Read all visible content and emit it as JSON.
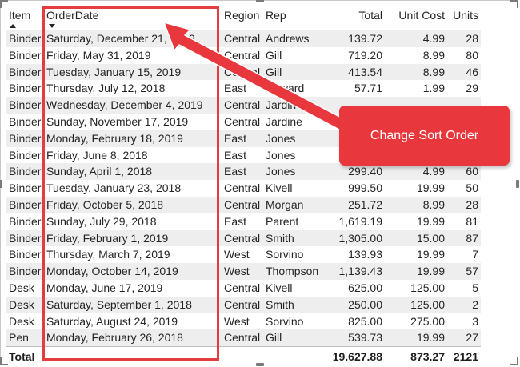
{
  "table": {
    "columns": [
      {
        "key": "item",
        "label": "Item",
        "sort": "asc"
      },
      {
        "key": "orderdate",
        "label": "OrderDate",
        "sort": "desc"
      },
      {
        "key": "region",
        "label": "Region"
      },
      {
        "key": "rep",
        "label": "Rep"
      },
      {
        "key": "total",
        "label": "Total"
      },
      {
        "key": "unitcost",
        "label": "Unit Cost"
      },
      {
        "key": "units",
        "label": "Units"
      }
    ],
    "rows": [
      [
        "Binder",
        "Saturday, December 21, 2019",
        "Central",
        "Andrews",
        "139.72",
        "4.99",
        "28"
      ],
      [
        "Binder",
        "Friday, May 31, 2019",
        "Central",
        "Gill",
        "719.20",
        "8.99",
        "80"
      ],
      [
        "Binder",
        "Tuesday, January 15, 2019",
        "Central",
        "Gill",
        "413.54",
        "8.99",
        "46"
      ],
      [
        "Binder",
        "Thursday, July 12, 2018",
        "East",
        "Howard",
        "57.71",
        "1.99",
        "29"
      ],
      [
        "Binder",
        "Wednesday, December 4, 2019",
        "Central",
        "Jardine",
        "",
        "",
        ""
      ],
      [
        "Binder",
        "Sunday, November 17, 2019",
        "Central",
        "Jardine",
        "",
        "",
        ""
      ],
      [
        "Binder",
        "Monday, February 18, 2019",
        "East",
        "Jones",
        "",
        "",
        ""
      ],
      [
        "Binder",
        "Friday, June 8, 2018",
        "East",
        "Jones",
        "",
        "",
        ""
      ],
      [
        "Binder",
        "Sunday, April 1, 2018",
        "East",
        "Jones",
        "299.40",
        "4.99",
        "60"
      ],
      [
        "Binder",
        "Tuesday, January 23, 2018",
        "Central",
        "Kivell",
        "999.50",
        "19.99",
        "50"
      ],
      [
        "Binder",
        "Friday, October 5, 2018",
        "Central",
        "Morgan",
        "251.72",
        "8.99",
        "28"
      ],
      [
        "Binder",
        "Sunday, July 29, 2018",
        "East",
        "Parent",
        "1,619.19",
        "19.99",
        "81"
      ],
      [
        "Binder",
        "Friday, February 1, 2019",
        "Central",
        "Smith",
        "1,305.00",
        "15.00",
        "87"
      ],
      [
        "Binder",
        "Thursday, March 7, 2019",
        "West",
        "Sorvino",
        "139.93",
        "19.99",
        "7"
      ],
      [
        "Binder",
        "Monday, October 14, 2019",
        "West",
        "Thompson",
        "1,139.43",
        "19.99",
        "57"
      ],
      [
        "Desk",
        "Monday, June 17, 2019",
        "Central",
        "Kivell",
        "625.00",
        "125.00",
        "5"
      ],
      [
        "Desk",
        "Saturday, September 1, 2018",
        "Central",
        "Smith",
        "250.00",
        "125.00",
        "2"
      ],
      [
        "Desk",
        "Saturday, August 24, 2019",
        "West",
        "Sorvino",
        "825.00",
        "275.00",
        "3"
      ],
      [
        "Pen",
        "Monday, February 26, 2018",
        "Central",
        "Gill",
        "539.73",
        "19.99",
        "27"
      ]
    ],
    "totals": {
      "label": "Total",
      "total": "19,627.88",
      "unitcost": "873.27",
      "units": "2121"
    }
  },
  "annotation": {
    "callout_text": "Change Sort Order",
    "color": "#e8383d"
  }
}
